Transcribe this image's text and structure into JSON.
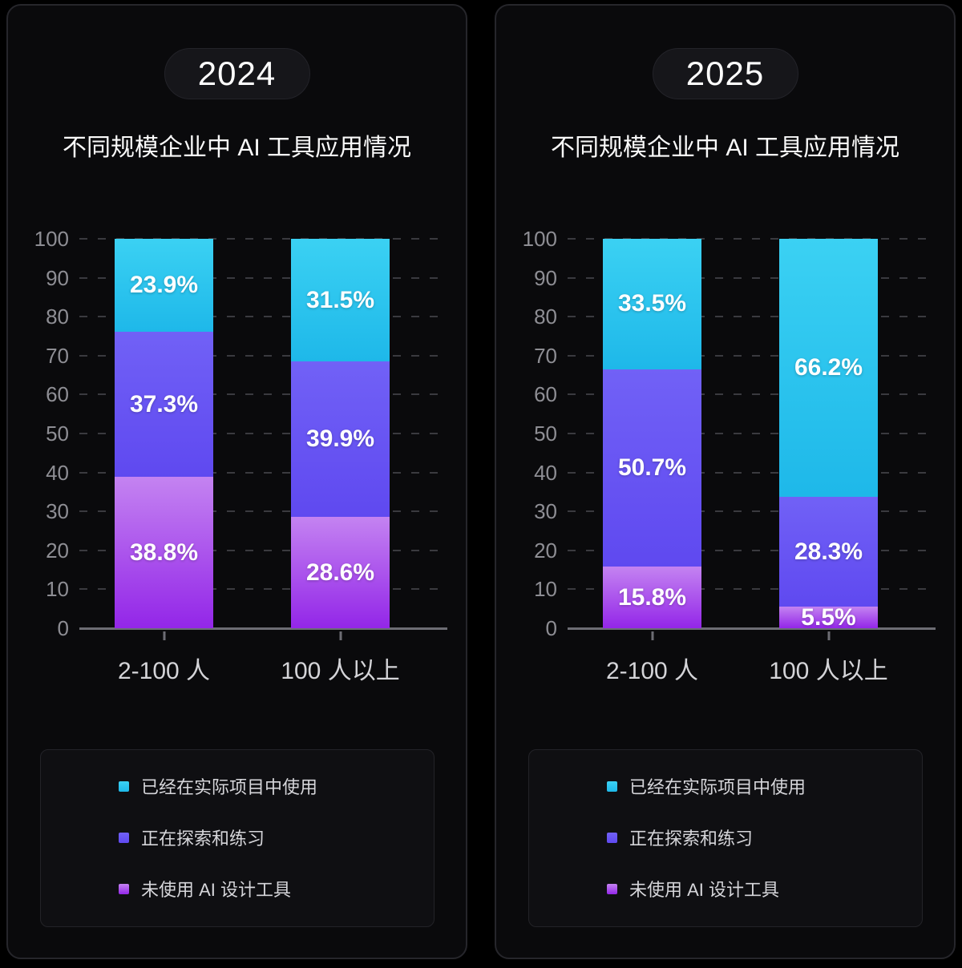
{
  "colors": {
    "page_bg": "#000000",
    "panel_bg": "#0a0a0c",
    "panel_border": "#26262b",
    "pill_bg": "#16161a",
    "title_text": "#fafafa",
    "axis_label": "#8e8e94",
    "gridline": "#3a3a3f",
    "axis_line": "#6d6d74",
    "category_label": "#d4d4d8",
    "segment_label": "#ffffff",
    "legend_bg": "#0f0f12",
    "legend_text": "#d6d6da"
  },
  "chart_data": [
    {
      "type": "bar",
      "stacked": true,
      "subtitle": "2024",
      "title": "不同规模企业中 AI 工具应用情况",
      "categories": [
        "2-100 人",
        "100 人以上"
      ],
      "series": [
        {
          "name": "已经在实际项目中使用",
          "values": [
            23.9,
            31.5
          ],
          "gradient": [
            "#3bd1f3",
            "#1eb8e9"
          ]
        },
        {
          "name": "正在探索和练习",
          "values": [
            37.3,
            39.9
          ],
          "gradient": [
            "#7161f6",
            "#5f49f0"
          ]
        },
        {
          "name": "未使用 AI 设计工具",
          "values": [
            38.8,
            28.6
          ],
          "gradient": [
            "#c483f1",
            "#9326e8"
          ]
        }
      ],
      "ylim": [
        0,
        100
      ],
      "yticks": [
        0,
        10,
        20,
        30,
        40,
        50,
        60,
        70,
        80,
        90,
        100
      ],
      "grid": "dashed-horizontal",
      "legend_position": "bottom",
      "value_label_format": "percent"
    },
    {
      "type": "bar",
      "stacked": true,
      "subtitle": "2025",
      "title": "不同规模企业中 AI 工具应用情况",
      "categories": [
        "2-100 人",
        "100 人以上"
      ],
      "series": [
        {
          "name": "已经在实际项目中使用",
          "values": [
            33.5,
            66.2
          ],
          "gradient": [
            "#3bd1f3",
            "#1eb8e9"
          ]
        },
        {
          "name": "正在探索和练习",
          "values": [
            50.7,
            28.3
          ],
          "gradient": [
            "#7161f6",
            "#5f49f0"
          ]
        },
        {
          "name": "未使用 AI 设计工具",
          "values": [
            15.8,
            5.5
          ],
          "gradient": [
            "#c483f1",
            "#9326e8"
          ]
        }
      ],
      "ylim": [
        0,
        100
      ],
      "yticks": [
        0,
        10,
        20,
        30,
        40,
        50,
        60,
        70,
        80,
        90,
        100
      ],
      "grid": "dashed-horizontal",
      "legend_position": "bottom",
      "value_label_format": "percent"
    }
  ]
}
